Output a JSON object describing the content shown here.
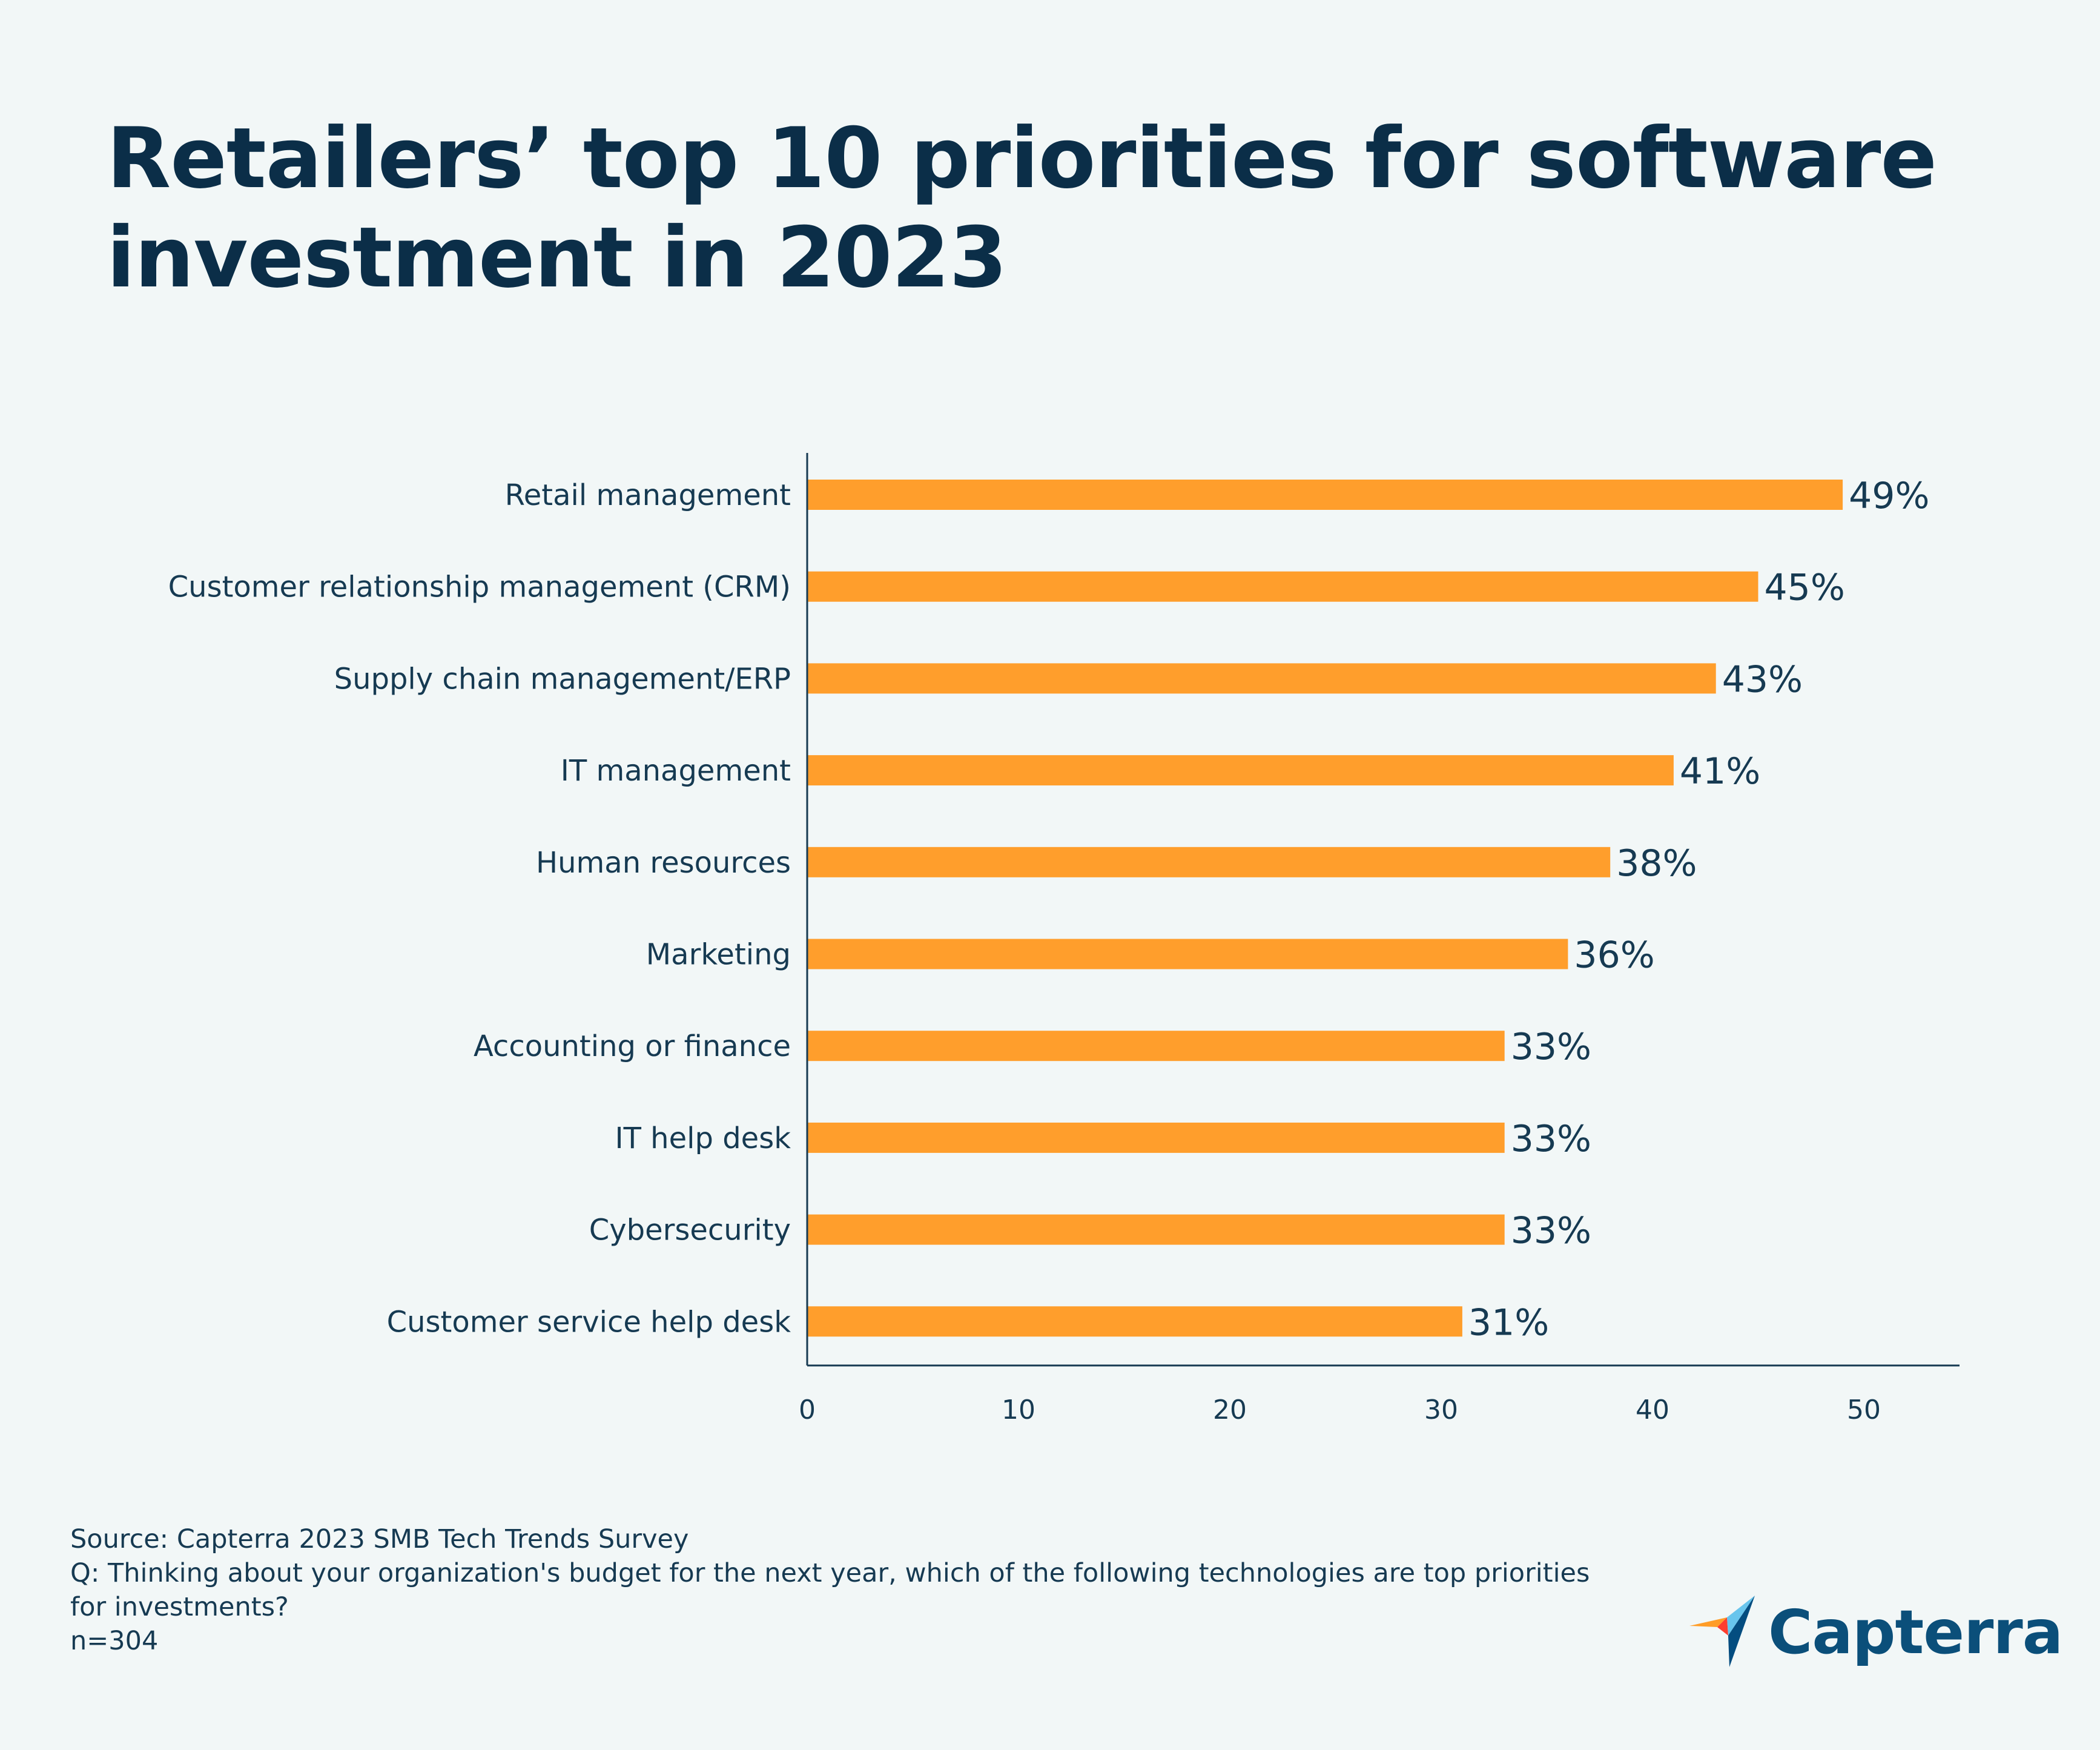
{
  "title_lines": [
    "Retailers’ top 10 priorities for software",
    "investment in 2023"
  ],
  "chart_data": {
    "type": "bar",
    "orientation": "horizontal",
    "categories": [
      "Retail management",
      "Customer relationship management (CRM)",
      "Supply chain management/ERP",
      "IT management",
      "Human resources",
      "Marketing",
      "Accounting or finance",
      "IT help desk",
      "Cybersecurity",
      "Customer service help desk"
    ],
    "values": [
      49,
      45,
      43,
      41,
      38,
      36,
      33,
      33,
      33,
      31
    ],
    "value_labels": [
      "49%",
      "45%",
      "43%",
      "41%",
      "38%",
      "36%",
      "33%",
      "33%",
      "33%",
      "31%"
    ],
    "xticks": [
      0,
      10,
      20,
      30,
      40,
      50
    ],
    "xlim": [
      0,
      55
    ],
    "grid": false,
    "bar_color": "#ff9e2c",
    "axis_color": "#163a52"
  },
  "footer": {
    "source": "Source: Capterra 2023 SMB Tech Trends Survey",
    "question_line1": "Q: Thinking about your organization's budget for the next year, which of the following technologies are top priorities",
    "question_line2": "for investments?",
    "sample": "n=304"
  },
  "brand": {
    "name": "Capterra",
    "logo_icon": "capterra-arrow-icon",
    "colors": {
      "orange": "#ff9d28",
      "red": "#ff3d2e",
      "light_blue": "#68c5ed",
      "dark_blue": "#044d80"
    }
  }
}
